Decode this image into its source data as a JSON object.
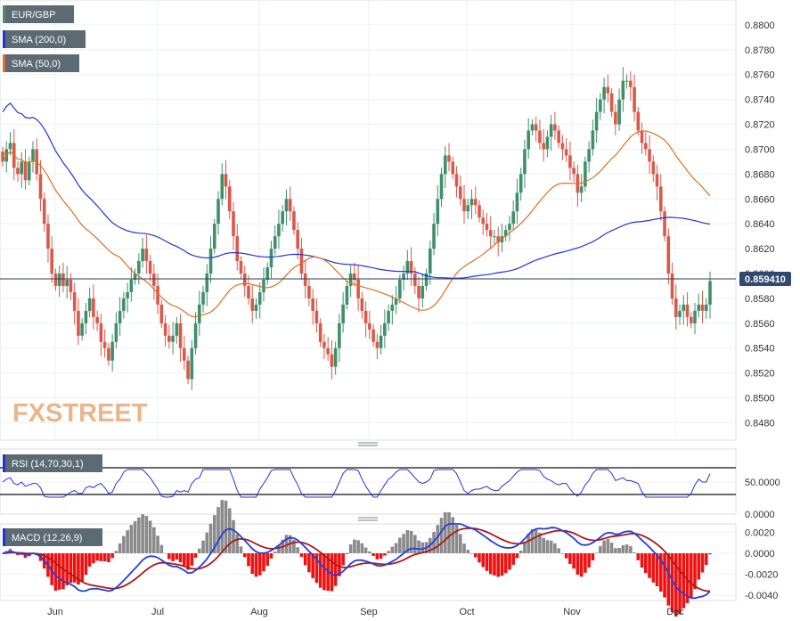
{
  "chart_data": [
    {
      "type": "candlestick",
      "symbol": "EUR/GBP",
      "x_labels": [
        "Jun",
        "Jul",
        "Aug",
        "Sep",
        "Oct",
        "Nov",
        "Dec"
      ],
      "y_ticks": [
        "0.8480",
        "0.8500",
        "0.8520",
        "0.8540",
        "0.8560",
        "0.8580",
        "0.8600",
        "0.8620",
        "0.8640",
        "0.8660",
        "0.8680",
        "0.8700",
        "0.8720",
        "0.8740",
        "0.8760",
        "0.8780",
        "0.8800"
      ],
      "ylim": [
        0.8466,
        0.882
      ],
      "last_price": 0.85941,
      "last_price_label": "0.859410",
      "legend": [
        {
          "label": "EUR/GBP",
          "color": "#5a8a6e"
        },
        {
          "label": "SMA (200,0)",
          "color": "#2233dd"
        },
        {
          "label": "SMA (50,0)",
          "color": "#e07020"
        }
      ],
      "watermark": "FXSTREET",
      "closes": [
        0.869,
        0.87,
        0.8705,
        0.8685,
        0.868,
        0.869,
        0.8675,
        0.869,
        0.87,
        0.868,
        0.866,
        0.864,
        0.862,
        0.86,
        0.859,
        0.86,
        0.859,
        0.8595,
        0.8585,
        0.857,
        0.855,
        0.856,
        0.857,
        0.858,
        0.8565,
        0.856,
        0.8545,
        0.854,
        0.853,
        0.8545,
        0.856,
        0.857,
        0.858,
        0.8585,
        0.8595,
        0.86,
        0.861,
        0.862,
        0.861,
        0.86,
        0.859,
        0.8575,
        0.856,
        0.855,
        0.8545,
        0.855,
        0.856,
        0.854,
        0.853,
        0.8515,
        0.854,
        0.856,
        0.8575,
        0.8585,
        0.86,
        0.862,
        0.864,
        0.866,
        0.868,
        0.867,
        0.865,
        0.863,
        0.861,
        0.86,
        0.859,
        0.858,
        0.857,
        0.8575,
        0.8585,
        0.8595,
        0.8605,
        0.862,
        0.863,
        0.864,
        0.865,
        0.866,
        0.865,
        0.8635,
        0.862,
        0.86,
        0.859,
        0.858,
        0.857,
        0.856,
        0.8545,
        0.854,
        0.8535,
        0.8525,
        0.854,
        0.856,
        0.8575,
        0.859,
        0.86,
        0.8595,
        0.858,
        0.857,
        0.856,
        0.8555,
        0.8545,
        0.854,
        0.855,
        0.856,
        0.857,
        0.8575,
        0.858,
        0.8595,
        0.86,
        0.861,
        0.86,
        0.859,
        0.858,
        0.859,
        0.86,
        0.862,
        0.864,
        0.866,
        0.868,
        0.8695,
        0.869,
        0.868,
        0.867,
        0.866,
        0.865,
        0.8655,
        0.866,
        0.8655,
        0.8645,
        0.864,
        0.8635,
        0.863,
        0.863,
        0.8625,
        0.863,
        0.8635,
        0.864,
        0.865,
        0.8665,
        0.868,
        0.87,
        0.8715,
        0.872,
        0.8715,
        0.8705,
        0.87,
        0.871,
        0.872,
        0.8715,
        0.8705,
        0.87,
        0.8695,
        0.8685,
        0.868,
        0.8665,
        0.867,
        0.869,
        0.87,
        0.8715,
        0.873,
        0.874,
        0.875,
        0.8745,
        0.873,
        0.872,
        0.874,
        0.8755,
        0.8755,
        0.875,
        0.873,
        0.8715,
        0.8705,
        0.87,
        0.869,
        0.868,
        0.867,
        0.865,
        0.863,
        0.86,
        0.858,
        0.8565,
        0.857,
        0.8575,
        0.8565,
        0.856,
        0.857,
        0.8575,
        0.857,
        0.8575,
        0.8594
      ]
    },
    {
      "type": "line",
      "title": "RSI (14,70,30,1)",
      "y_ticks": [
        "50.0000",
        "0.0000"
      ]
    },
    {
      "type": "line",
      "title": "MACD (12,26,9)",
      "y_ticks": [
        "0.0020",
        "0.0000",
        "-0.0020",
        "-0.0040"
      ],
      "ylim": [
        -0.0045,
        0.0028
      ]
    }
  ]
}
